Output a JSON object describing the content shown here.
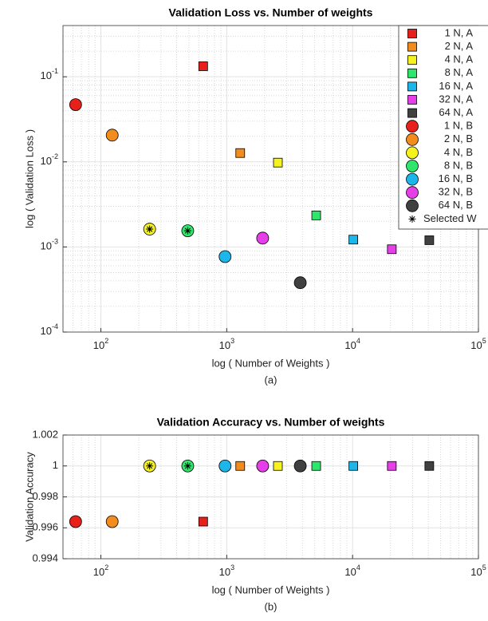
{
  "chart_data": [
    {
      "type": "scatter",
      "title": "Validation Loss vs. Number of weights",
      "x_label": "log ( Number of Weights )",
      "y_label": "log ( Validation Loss )",
      "caption": "(a)",
      "xlog": true,
      "ylog": true,
      "grid": true,
      "legend": "upper right",
      "xlim": [
        50,
        100000
      ],
      "ylim": [
        0.0001,
        0.4
      ],
      "xticks": [
        {
          "value": 100,
          "label": "10^2"
        },
        {
          "value": 1000,
          "label": "10^3"
        },
        {
          "value": 10000,
          "label": "10^4"
        },
        {
          "value": 100000,
          "label": "10^5"
        }
      ],
      "yticks": [
        {
          "value": 0.0001,
          "label": "10^-4"
        },
        {
          "value": 0.001,
          "label": "10^-3"
        },
        {
          "value": 0.01,
          "label": "10^-2"
        },
        {
          "value": 0.1,
          "label": "10^-1"
        }
      ],
      "series": [
        {
          "name": "1 N, A",
          "marker": "square",
          "color": "#e8201c",
          "x": [
            650
          ],
          "values": [
            0.133
          ]
        },
        {
          "name": "2 N, A",
          "marker": "square",
          "color": "#f28c1c",
          "x": [
            1280
          ],
          "values": [
            0.0127
          ]
        },
        {
          "name": "4 N, A",
          "marker": "square",
          "color": "#f5f21e",
          "x": [
            2550
          ],
          "values": [
            0.0098
          ]
        },
        {
          "name": "8 N, A",
          "marker": "square",
          "color": "#2ee66c",
          "x": [
            5140
          ],
          "values": [
            0.00235
          ]
        },
        {
          "name": "16 N, A",
          "marker": "square",
          "color": "#1cb6ea",
          "x": [
            10140
          ],
          "values": [
            0.00122
          ]
        },
        {
          "name": "32 N, A",
          "marker": "square",
          "color": "#e63ee8",
          "x": [
            20500
          ],
          "values": [
            0.00094
          ]
        },
        {
          "name": "64 N, A",
          "marker": "square",
          "color": "#404040",
          "x": [
            40700
          ],
          "values": [
            0.0012
          ]
        },
        {
          "name": "1 N, B",
          "marker": "circle",
          "color": "#e8201c",
          "x": [
            63
          ],
          "values": [
            0.047
          ]
        },
        {
          "name": "2 N, B",
          "marker": "circle",
          "color": "#f28c1c",
          "x": [
            123
          ],
          "values": [
            0.0206
          ]
        },
        {
          "name": "4 N, B",
          "marker": "circle",
          "color": "#f5f21e",
          "x": [
            244
          ],
          "values": [
            0.00162
          ]
        },
        {
          "name": "8 N, B",
          "marker": "circle",
          "color": "#2ee66c",
          "x": [
            490
          ],
          "values": [
            0.00155
          ]
        },
        {
          "name": "16 N, B",
          "marker": "circle",
          "color": "#1cb6ea",
          "x": [
            970
          ],
          "values": [
            0.00077
          ]
        },
        {
          "name": "32 N, B",
          "marker": "circle",
          "color": "#e63ee8",
          "x": [
            1930
          ],
          "values": [
            0.00127
          ]
        },
        {
          "name": "64 N, B",
          "marker": "circle",
          "color": "#404040",
          "x": [
            3840
          ],
          "values": [
            0.00038
          ]
        },
        {
          "name": "Selected W",
          "marker": "asterisk",
          "color": "#000000",
          "x": [
            244,
            490
          ],
          "values": [
            0.00162,
            0.00155
          ]
        }
      ]
    },
    {
      "type": "scatter",
      "title": "Validation Accuracy vs. Number of weights",
      "x_label": "log ( Number of Weights )",
      "y_label": "Validation Accuracy",
      "caption": "(b)",
      "xlog": true,
      "ylog": false,
      "grid": true,
      "xlim": [
        50,
        100000
      ],
      "ylim": [
        0.994,
        1.002
      ],
      "xticks": [
        {
          "value": 100,
          "label": "10^2"
        },
        {
          "value": 1000,
          "label": "10^3"
        },
        {
          "value": 10000,
          "label": "10^4"
        },
        {
          "value": 100000,
          "label": "10^5"
        }
      ],
      "yticks": [
        0.994,
        0.996,
        0.998,
        1,
        1.002
      ],
      "series": [
        {
          "marker": "square",
          "color": "#e8201c",
          "x": [
            650
          ],
          "values": [
            0.9964
          ]
        },
        {
          "marker": "square",
          "color": "#f28c1c",
          "x": [
            1280
          ],
          "values": [
            1
          ]
        },
        {
          "marker": "square",
          "color": "#f5f21e",
          "x": [
            2550
          ],
          "values": [
            1
          ]
        },
        {
          "marker": "square",
          "color": "#2ee66c",
          "x": [
            5140
          ],
          "values": [
            1
          ]
        },
        {
          "marker": "square",
          "color": "#1cb6ea",
          "x": [
            10140
          ],
          "values": [
            1
          ]
        },
        {
          "marker": "square",
          "color": "#e63ee8",
          "x": [
            20500
          ],
          "values": [
            1
          ]
        },
        {
          "marker": "square",
          "color": "#404040",
          "x": [
            40700
          ],
          "values": [
            1
          ]
        },
        {
          "marker": "circle",
          "color": "#e8201c",
          "x": [
            63
          ],
          "values": [
            0.9964
          ]
        },
        {
          "marker": "circle",
          "color": "#f28c1c",
          "x": [
            123
          ],
          "values": [
            0.9964
          ]
        },
        {
          "marker": "circle",
          "color": "#f5f21e",
          "x": [
            244
          ],
          "values": [
            1
          ]
        },
        {
          "marker": "circle",
          "color": "#2ee66c",
          "x": [
            490
          ],
          "values": [
            1
          ]
        },
        {
          "marker": "circle",
          "color": "#1cb6ea",
          "x": [
            970
          ],
          "values": [
            1
          ]
        },
        {
          "marker": "circle",
          "color": "#e63ee8",
          "x": [
            1930
          ],
          "values": [
            1
          ]
        },
        {
          "marker": "circle",
          "color": "#404040",
          "x": [
            3840
          ],
          "values": [
            1
          ]
        },
        {
          "marker": "asterisk",
          "color": "#000000",
          "x": [
            244,
            490
          ],
          "values": [
            1,
            1
          ]
        }
      ]
    }
  ]
}
